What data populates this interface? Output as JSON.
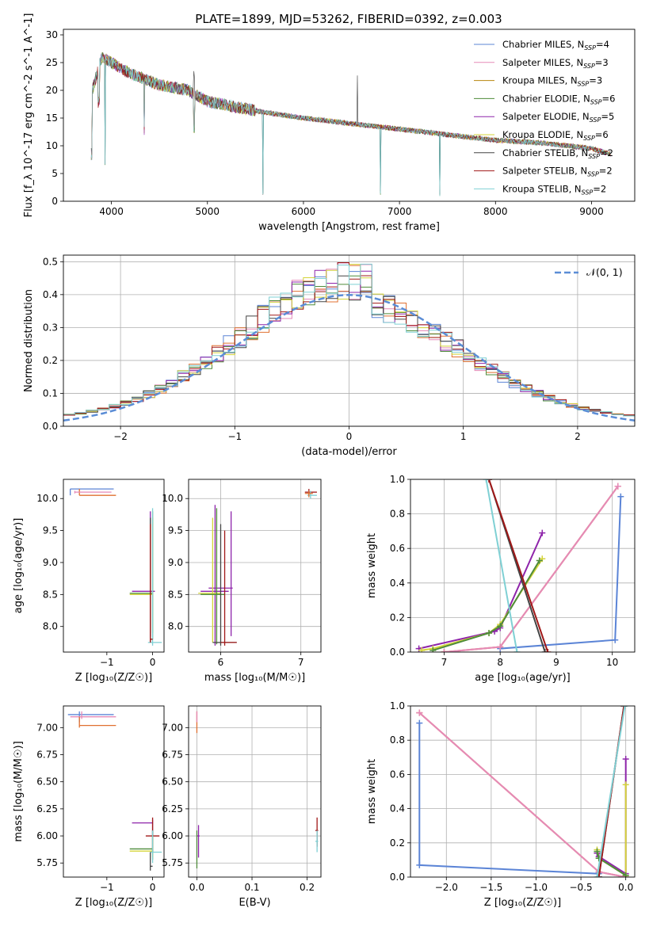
{
  "figure": {
    "title": "PLATE=1899, MJD=53262, FIBERID=0392, z=0.003"
  },
  "colors": {
    "chabrier_miles": "#5b84d6",
    "salpeter_miles": "#e58ab8",
    "kroupa_miles": "#b8860b",
    "chabrier_elodie": "#4e8b3a",
    "salpeter_elodie": "#8e24aa",
    "kroupa_elodie": "#d4d43a",
    "chabrier_stelib": "#444444",
    "salpeter_stelib": "#a01818",
    "kroupa_stelib": "#7fd0d4",
    "orange": "#e07030",
    "normal": "#5b8dd6"
  },
  "chart_data": [
    {
      "id": "spectrum",
      "type": "line",
      "title": "PLATE=1899, MJD=53262, FIBERID=0392, z=0.003",
      "xlabel": "wavelength [Angstrom, rest frame]",
      "ylabel": "Flux [f_λ 10^-17 erg cm^-2 s^-1 A^-1]",
      "xlim": [
        3500,
        9450
      ],
      "ylim": [
        0,
        31
      ],
      "xticks": [
        4000,
        5000,
        6000,
        7000,
        8000,
        9000
      ],
      "yticks": [
        0,
        5,
        10,
        15,
        20,
        25,
        30
      ],
      "legend_position": "top-right",
      "legend": [
        {
          "label": "Chabrier MILES, N",
          "sub": "SSP",
          "tail": "=4",
          "color": "#5b84d6"
        },
        {
          "label": "Salpeter MILES, N",
          "sub": "SSP",
          "tail": "=3",
          "color": "#e58ab8"
        },
        {
          "label": "Kroupa MILES, N",
          "sub": "SSP",
          "tail": "=3",
          "color": "#b8860b"
        },
        {
          "label": "Chabrier ELODIE, N",
          "sub": "SSP",
          "tail": "=6",
          "color": "#4e8b3a"
        },
        {
          "label": "Salpeter ELODIE, N",
          "sub": "SSP",
          "tail": "=5",
          "color": "#8e24aa"
        },
        {
          "label": "Kroupa ELODIE, N",
          "sub": "SSP",
          "tail": "=6",
          "color": "#d4d43a"
        },
        {
          "label": "Chabrier STELIB, N",
          "sub": "SSP",
          "tail": "=2",
          "color": "#444444"
        },
        {
          "label": "Salpeter STELIB, N",
          "sub": "SSP",
          "tail": "=2",
          "color": "#a01818"
        },
        {
          "label": "Kroupa STELIB, N",
          "sub": "SSP",
          "tail": "=2",
          "color": "#7fd0d4"
        }
      ],
      "continuum": {
        "x": [
          3800,
          3900,
          4000,
          4200,
          4500,
          4800,
          5000,
          5300,
          5600,
          6000,
          6500,
          7000,
          7500,
          8000,
          8500,
          9000,
          9200
        ],
        "y": [
          20,
          26,
          25,
          23,
          21,
          20,
          18,
          17,
          16,
          15,
          14,
          13,
          12,
          11,
          10.5,
          9.5,
          8.5
        ]
      },
      "absorption_lines": [
        {
          "x": 3934,
          "depth": 20
        },
        {
          "x": 4340,
          "depth": 9
        },
        {
          "x": 4861,
          "depth": 6
        },
        {
          "x": 5577,
          "depth": 15
        },
        {
          "x": 6800,
          "depth": 12
        },
        {
          "x": 7420,
          "depth": 11
        }
      ],
      "emission_lines": [
        {
          "x": 4340,
          "height": 9
        },
        {
          "x": 4861,
          "height": 10
        },
        {
          "x": 6563,
          "height": 9
        }
      ]
    },
    {
      "id": "residuals",
      "type": "line",
      "xlabel": "(data-model)/error",
      "ylabel": "Normed distribution",
      "xlim": [
        -2.5,
        2.5
      ],
      "ylim": [
        0,
        0.52
      ],
      "xticks": [
        -2,
        -1,
        0,
        1,
        2
      ],
      "xtick_labels": [
        "−2",
        "−1",
        "0",
        "1",
        "2"
      ],
      "yticks": [
        0.0,
        0.1,
        0.2,
        0.3,
        0.4,
        0.5
      ],
      "ytick_labels": [
        "0.0",
        "0.1",
        "0.2",
        "0.3",
        "0.4",
        "0.5"
      ],
      "legend_position": "top-right",
      "legend": [
        {
          "label": "𝒩(0, 1)",
          "color": "#5b8dd6",
          "style": "dashed"
        }
      ],
      "normal_curve": {
        "mean": 0,
        "sigma": 1
      }
    },
    {
      "id": "age_vs_Z",
      "type": "scatter",
      "xlabel": "Z [log₁₀(Z/Z☉)]",
      "ylabel": "age  [log₁₀(age/yr)]",
      "xlim": [
        -1.95,
        0.25
      ],
      "ylim": [
        7.6,
        10.3
      ],
      "xticks": [
        -1,
        0
      ],
      "xtick_labels": [
        "−1",
        "0"
      ],
      "yticks": [
        8.0,
        8.5,
        9.0,
        9.5,
        10.0
      ],
      "ytick_labels": [
        "8.0",
        "8.5",
        "9.0",
        "9.5",
        "10.0"
      ]
    },
    {
      "id": "age_vs_mass",
      "type": "scatter",
      "xlabel": "mass [log₁₀(M/M☉)]",
      "ylabel": "",
      "xlim": [
        5.6,
        7.25
      ],
      "ylim": [
        7.6,
        10.3
      ],
      "xticks": [
        6,
        7
      ],
      "xtick_labels": [
        "6",
        "7"
      ],
      "yticks": [
        8.0,
        8.5,
        9.0,
        9.5,
        10.0
      ],
      "ytick_labels": [
        "8.0",
        "8.5",
        "9.0",
        "9.5",
        "10.0"
      ]
    },
    {
      "id": "mass_weight_vs_age",
      "type": "line",
      "xlabel": "age  [log₁₀(age/yr)]",
      "ylabel": "mass weight",
      "xlim": [
        6.4,
        10.4
      ],
      "ylim": [
        0,
        1
      ],
      "xticks": [
        7,
        8,
        9,
        10
      ],
      "xtick_labels": [
        "7",
        "8",
        "9",
        "10"
      ],
      "yticks": [
        0.0,
        0.2,
        0.4,
        0.6,
        0.8,
        1.0
      ],
      "ytick_labels": [
        "0.0",
        "0.2",
        "0.4",
        "0.6",
        "0.8",
        "1.0"
      ],
      "series": [
        {
          "color": "#5b84d6",
          "x": [
            10.15,
            10.05,
            8.0
          ],
          "y": [
            0.9,
            0.07,
            0.02
          ]
        },
        {
          "color": "#e07030",
          "x": [
            10.1,
            8.0,
            7.0
          ],
          "y": [
            0.96,
            0.03,
            0.0
          ]
        },
        {
          "color": "#e58ab8",
          "x": [
            10.1,
            8.0,
            7.0
          ],
          "y": [
            0.96,
            0.03,
            0.0
          ]
        },
        {
          "color": "#8e24aa",
          "x": [
            8.75,
            8.0,
            7.9,
            6.55
          ],
          "y": [
            0.69,
            0.14,
            0.12,
            0.02
          ]
        },
        {
          "color": "#d4d43a",
          "x": [
            8.75,
            8.0,
            7.8,
            6.8,
            6.6
          ],
          "y": [
            0.54,
            0.16,
            0.11,
            0.02,
            0.01
          ]
        },
        {
          "color": "#4e8b3a",
          "x": [
            8.7,
            8.0,
            7.8,
            6.8
          ],
          "y": [
            0.53,
            0.15,
            0.11,
            0.01
          ]
        },
        {
          "color": "#444444",
          "x": [
            7.8,
            8.8
          ],
          "y": [
            1.0,
            0.0
          ]
        },
        {
          "color": "#a01818",
          "x": [
            7.8,
            8.85
          ],
          "y": [
            1.0,
            0.0
          ]
        },
        {
          "color": "#7fd0d4",
          "x": [
            7.75,
            8.3
          ],
          "y": [
            1.0,
            0.0
          ]
        }
      ]
    },
    {
      "id": "mass_vs_Z",
      "type": "scatter",
      "xlabel": "Z [log₁₀(Z/Z☉)]",
      "ylabel": "mass [log₁₀(M/M☉)]",
      "xlim": [
        -1.95,
        0.25
      ],
      "ylim": [
        5.62,
        7.2
      ],
      "xticks": [
        -1,
        0
      ],
      "xtick_labels": [
        "−1",
        "0"
      ],
      "yticks": [
        5.75,
        6.0,
        6.25,
        6.5,
        6.75,
        7.0
      ],
      "ytick_labels": [
        "5.75",
        "6.00",
        "6.25",
        "6.50",
        "6.75",
        "7.00"
      ]
    },
    {
      "id": "mass_vs_ebv",
      "type": "scatter",
      "xlabel": "E(B-V)",
      "ylabel": "",
      "xlim": [
        -0.015,
        0.225
      ],
      "ylim": [
        5.62,
        7.2
      ],
      "xticks": [
        0.0,
        0.1,
        0.2
      ],
      "xtick_labels": [
        "0.0",
        "0.1",
        "0.2"
      ],
      "yticks": [
        5.75,
        6.0,
        6.25,
        6.5,
        6.75,
        7.0
      ],
      "ytick_labels": [
        "5.75",
        "6.00",
        "6.25",
        "6.50",
        "6.75",
        "7.00"
      ]
    },
    {
      "id": "mass_weight_vs_Z",
      "type": "line",
      "xlabel": "Z [log₁₀(Z/Z☉)]",
      "ylabel": "mass weight",
      "xlim": [
        -2.4,
        0.1
      ],
      "ylim": [
        0,
        1
      ],
      "xticks": [
        -2.0,
        -1.5,
        -1.0,
        -0.5,
        0.0
      ],
      "xtick_labels": [
        "−2.0",
        "−1.5",
        "−1.0",
        "−0.5",
        "0.0"
      ],
      "yticks": [
        0.0,
        0.2,
        0.4,
        0.6,
        0.8,
        1.0
      ],
      "ytick_labels": [
        "0.0",
        "0.2",
        "0.4",
        "0.6",
        "0.8",
        "1.0"
      ],
      "series": [
        {
          "color": "#5b84d6",
          "x": [
            -2.3,
            -2.3,
            -0.3,
            -0.3
          ],
          "y": [
            0.9,
            0.07,
            0.02,
            0.0
          ]
        },
        {
          "color": "#e07030",
          "x": [
            -2.3,
            -0.3,
            0.0
          ],
          "y": [
            0.96,
            0.03,
            0.0
          ]
        },
        {
          "color": "#e58ab8",
          "x": [
            -2.3,
            -0.3,
            0.0
          ],
          "y": [
            0.96,
            0.03,
            0.0
          ]
        },
        {
          "color": "#8e24aa",
          "x": [
            -0.32,
            -0.3,
            0.0,
            0.0
          ],
          "y": [
            0.14,
            0.12,
            0.02,
            0.69
          ]
        },
        {
          "color": "#d4d43a",
          "x": [
            -0.32,
            -0.3,
            0.0,
            0.0
          ],
          "y": [
            0.16,
            0.11,
            0.01,
            0.54
          ]
        },
        {
          "color": "#4e8b3a",
          "x": [
            -0.32,
            -0.3,
            0.0
          ],
          "y": [
            0.15,
            0.11,
            0.01
          ]
        },
        {
          "color": "#444444",
          "x": [
            -0.3,
            -0.02
          ],
          "y": [
            0.0,
            1.0
          ]
        },
        {
          "color": "#a01818",
          "x": [
            -0.3,
            -0.02
          ],
          "y": [
            0.0,
            1.0
          ]
        },
        {
          "color": "#7fd0d4",
          "x": [
            -0.32,
            -0.01
          ],
          "y": [
            0.0,
            1.0
          ]
        }
      ]
    }
  ]
}
